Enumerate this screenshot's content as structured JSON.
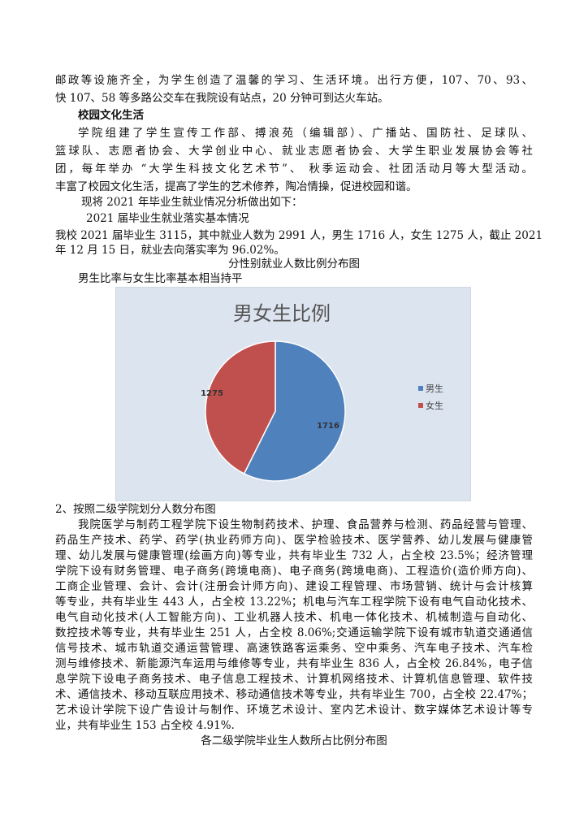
{
  "lines_top": [
    {
      "text": "邮政等设施齐全，为学生创造了温馨的学习、生活环境。出行方便，107、70、93、",
      "full": true
    },
    {
      "text": "快 107、58 等多路公交车在我院设有站点，20 分钟可到达火车站。",
      "full": false
    },
    {
      "text": "校园文化生活",
      "bold": true,
      "indent": true
    },
    {
      "text": "学院组建了学生宣传工作部、搏浪苑（编辑部）、广播站、国防社、足球队、",
      "full": true,
      "indent": true
    },
    {
      "text": "篮球队、志愿者协会、大学创业中心、就业志愿者协会、大学生职业发展协会等社",
      "full": true
    },
    {
      "text": "团，每年举办 “大学生科技文化艺术节”、 秋季运动会、社团活动月等大型活动。",
      "full": true
    },
    {
      "text": "丰富了校园文化生活，提高了学生的艺术修养，陶冶情操，促进校园和谐。",
      "full": false
    },
    {
      "text": "现将 2021 年毕业生就业情况分析做出如下：",
      "indent2": true
    },
    {
      "text": "2021 届毕业生就业落实基本情况",
      "indent3": true
    },
    {
      "text": "我校 2021 届毕业生 3115，其中就业人数为 2991 人，男生 1716 人，女生 1275 人，截止 2021",
      "full": true
    },
    {
      "text": "年 12 月 15 日，就业去向落实率为 96.02%。"
    },
    {
      "text": "分性别就业人数比例分布图",
      "center": true
    },
    {
      "text": "男生比率与女生比率基本相当持平",
      "indent": true
    }
  ],
  "lines_bottom": [
    {
      "text": "2、按照二级学院划分人数分布图"
    },
    {
      "text": "我院医学与制药工程学院下设生物制药技术、护理、食品营养与检测、药品经营与管理、",
      "full": true,
      "indent": true
    },
    {
      "text": "药品生产技术、药学、药学(执业药师方向)、医学检验技术、医学营养、幼儿发展与健康管",
      "full": true
    },
    {
      "text": "理、幼儿发展与健康管理(绘画方向)等专业，共有毕业生 732 人，占全校 23.5%；经济管理",
      "full": true
    },
    {
      "text": "学院下设有财务管理、电子商务(跨境电商)、电子商务(跨境电商)、工程造价(造价师方向)、",
      "full": true
    },
    {
      "text": "工商企业管理、会计、会计(注册会计师方向)、建设工程管理、市场营销、统计与会计核算",
      "full": true
    },
    {
      "text": "等专业，共有毕业生 443 人，占全校 13.22%；机电与汽车工程学院下设有电气自动化技术、",
      "full": true
    },
    {
      "text": "电气自动化技术(人工智能方向)、工业机器人技术、机电一体化技术、机械制造与自动化、",
      "full": true
    },
    {
      "text": "数控技术等专业，共有毕业生 251 人，占全校 8.06%;交通运输学院下设有城市轨道交通通信",
      "full": true
    },
    {
      "text": "信号技术、城市轨道交通运营管理、高速铁路客运乘务、空中乘务、汽车电子技术、汽车检",
      "full": true
    },
    {
      "text": "测与维修技术、新能源汽车运用与维修等专业，共有毕业生 836 人，占全校 26.84%，电子信",
      "full": true
    },
    {
      "text": "息学院下设电子商务技术、电子信息工程技术、计算机网络技术、计算机信息管理、软件技",
      "full": true
    },
    {
      "text": "术、通信技术、移动互联应用技术、移动通信技术等专业，共有毕业生 700，占全校 22.47%；",
      "full": true
    },
    {
      "text": "艺术设计学院下设广告设计与制作、环境艺术设计、室内艺术设计、数字媒体艺术设计等专",
      "full": true
    },
    {
      "text": "业，共有毕业生 153  占全校 4.91%."
    },
    {
      "text": "各二级学院毕业生人数所占比例分布图",
      "center": true
    }
  ],
  "chart_data": {
    "type": "pie",
    "title": "男女生比例",
    "categories": [
      "男生",
      "女生"
    ],
    "values": [
      1716,
      1275
    ],
    "data_labels": [
      "1716",
      "1275"
    ],
    "colors": [
      "#4f81bd",
      "#c0504d"
    ],
    "background": "#dce4ef",
    "legend_placement": "right",
    "start": "top, clockwise"
  }
}
